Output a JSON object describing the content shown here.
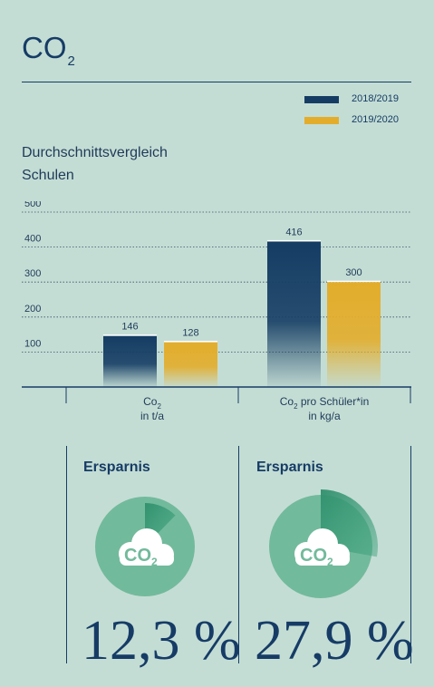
{
  "title": {
    "main": "CO",
    "sub": "2"
  },
  "legend": [
    {
      "label": "2018/2019",
      "color": "#153d64"
    },
    {
      "label": "2019/2020",
      "color": "#e3ad2b"
    }
  ],
  "subtitle": {
    "line1": "Durchschnittsvergleich",
    "line2": "Schulen"
  },
  "chart_data": {
    "type": "bar",
    "title": "Durchschnittsvergleich Schulen",
    "categories": [
      {
        "main": "Co",
        "sub": "2",
        "rest": "",
        "line2": "in t/a"
      },
      {
        "main": "Co",
        "sub": "2",
        "rest": " pro Schüler*in",
        "line2": "in kg/a"
      }
    ],
    "series": [
      {
        "name": "2018/2019",
        "values": [
          146,
          416
        ],
        "color": "#153d64"
      },
      {
        "name": "2019/2020",
        "values": [
          128,
          300
        ],
        "color": "#e3ad2b"
      }
    ],
    "y_ticks": [
      "100",
      "200",
      "300",
      "400",
      "500"
    ],
    "ylim": [
      0,
      500
    ],
    "grid": true
  },
  "savings": [
    {
      "label": "Ersparnis",
      "value": "12,3 %",
      "fraction": 0.123,
      "icon": "co2-cloud-icon",
      "icon_text": {
        "main": "CO",
        "sub": "2"
      }
    },
    {
      "label": "Ersparnis",
      "value": "27,9 %",
      "fraction": 0.279,
      "icon": "co2-cloud-icon",
      "icon_text": {
        "main": "CO",
        "sub": "2"
      }
    }
  ],
  "colors": {
    "background": "#c4ddd4",
    "navy": "#153d64",
    "gold": "#e3ad2b",
    "green": "#6fb89a",
    "green_dark": "#3c9a78"
  }
}
